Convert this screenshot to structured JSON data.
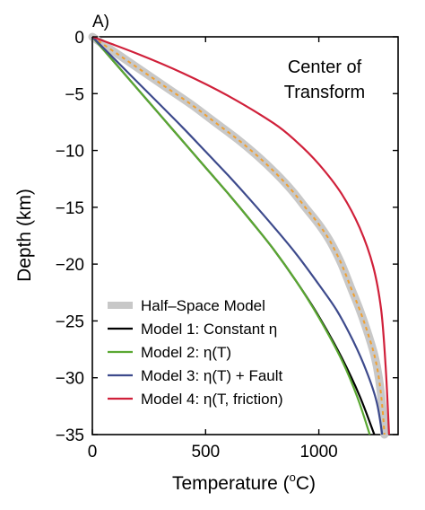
{
  "chart_data": {
    "type": "line",
    "panel_label": "A)",
    "annotation": [
      "Center of",
      "Transform"
    ],
    "xlabel": "Temperature (",
    "xlabel_sup": "o",
    "xlabel_end": "C)",
    "ylabel": "Depth (km)",
    "xlim": [
      0,
      1350
    ],
    "ylim": [
      -35,
      0
    ],
    "xticks": [
      0,
      500,
      1000
    ],
    "xtick_labels": [
      "0",
      "500",
      "1000"
    ],
    "yticks": [
      0,
      -5,
      -10,
      -15,
      -20,
      -25,
      -30,
      -35
    ],
    "ytick_labels": [
      "0",
      "−5",
      "−10",
      "−15",
      "−20",
      "−25",
      "−30",
      "−35"
    ],
    "grid": false,
    "legend_position": "bottom-left",
    "series": [
      {
        "name": "Half–Space Model",
        "color": "#c8c8c8",
        "overlay_color": "#f0a030",
        "style": "thick-dashed",
        "x": [
          0,
          110,
          220,
          330,
          440,
          540,
          640,
          730,
          810,
          880,
          940,
          1000,
          1050,
          1100,
          1140,
          1180,
          1215,
          1245,
          1265,
          1280,
          1290
        ],
        "y": [
          0,
          -1.5,
          -3,
          -4.5,
          -6,
          -7.5,
          -9,
          -10.5,
          -12,
          -13.5,
          -15,
          -16.5,
          -18,
          -20,
          -22,
          -24,
          -26,
          -28,
          -30,
          -32.5,
          -35
        ]
      },
      {
        "name": "Model 1: Constant η",
        "color": "#000000",
        "x": [
          0,
          100,
          200,
          300,
          400,
          500,
          600,
          700,
          800,
          900,
          1000,
          1100,
          1180,
          1245
        ],
        "y": [
          0,
          -2.3,
          -4.6,
          -6.9,
          -9.2,
          -11.5,
          -13.8,
          -16.2,
          -18.7,
          -21.5,
          -24.6,
          -28.2,
          -31.6,
          -35
        ]
      },
      {
        "name": "Model 2: η(T)",
        "color": "#5aa832",
        "x": [
          0,
          100,
          200,
          300,
          400,
          500,
          600,
          700,
          800,
          900,
          1000,
          1100,
          1170,
          1225
        ],
        "y": [
          0,
          -2.3,
          -4.6,
          -6.9,
          -9.2,
          -11.5,
          -13.8,
          -16.2,
          -18.7,
          -21.5,
          -24.7,
          -28.4,
          -31.7,
          -35
        ]
      },
      {
        "name": "Model 3: η(T) + Fault",
        "color": "#3d4a8c",
        "x": [
          0,
          100,
          200,
          300,
          400,
          500,
          600,
          700,
          800,
          900,
          1000,
          1080,
          1150,
          1210,
          1255,
          1280
        ],
        "y": [
          0,
          -2.0,
          -4.0,
          -6.0,
          -8.0,
          -10.1,
          -12.2,
          -14.4,
          -16.7,
          -19.1,
          -21.8,
          -24.1,
          -26.7,
          -29.4,
          -32.1,
          -35
        ]
      },
      {
        "name": "Model 4: η(T, friction)",
        "color": "#d0203a",
        "x": [
          0,
          200,
          400,
          600,
          800,
          900,
          1000,
          1100,
          1180,
          1240,
          1275,
          1295,
          1310
        ],
        "y": [
          0,
          -1.5,
          -3.2,
          -5.2,
          -7.6,
          -9.2,
          -11.2,
          -13.8,
          -16.8,
          -20.2,
          -24.0,
          -29.0,
          -35
        ]
      }
    ]
  }
}
